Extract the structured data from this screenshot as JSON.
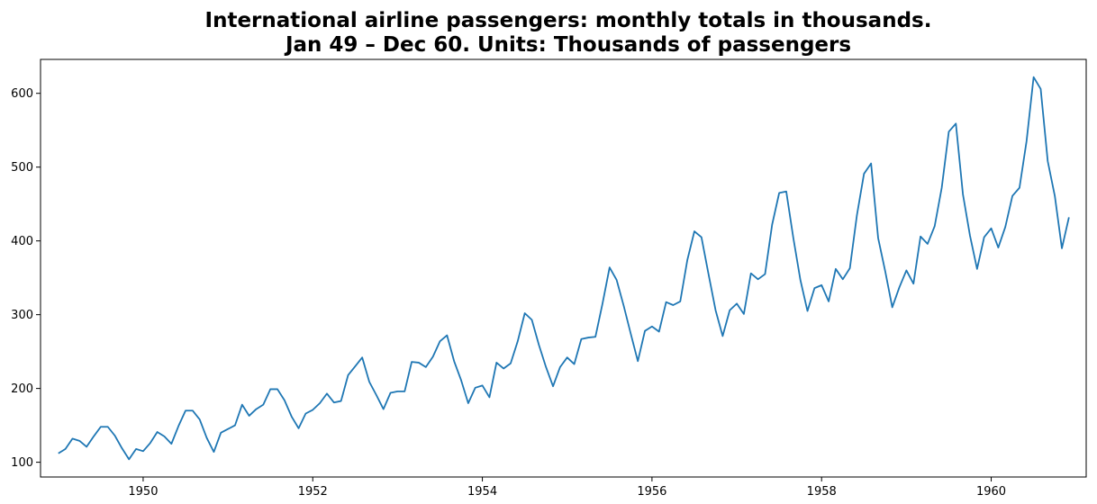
{
  "chart_data": {
    "type": "line",
    "title_lines": [
      "International airline passengers: monthly totals in thousands.",
      "Jan 49 – Dec 60. Units: Thousands of passengers"
    ],
    "xlabel": "",
    "ylabel": "",
    "grid": false,
    "legend": "none",
    "x_start": "1949-01",
    "x_frequency": "monthly",
    "xlim": [
      1948.79,
      1961.12
    ],
    "ylim": [
      80,
      646
    ],
    "x_ticks": [
      1950,
      1952,
      1954,
      1956,
      1958,
      1960
    ],
    "y_ticks": [
      100,
      200,
      300,
      400,
      500,
      600
    ],
    "series": [
      {
        "color": "#1f77b4",
        "values": [
          112,
          118,
          132,
          129,
          121,
          135,
          148,
          148,
          136,
          119,
          104,
          118,
          115,
          126,
          141,
          135,
          125,
          149,
          170,
          170,
          158,
          133,
          114,
          140,
          145,
          150,
          178,
          163,
          172,
          178,
          199,
          199,
          184,
          162,
          146,
          166,
          171,
          180,
          193,
          181,
          183,
          218,
          230,
          242,
          209,
          191,
          172,
          194,
          196,
          196,
          236,
          235,
          229,
          243,
          264,
          272,
          237,
          211,
          180,
          201,
          204,
          188,
          235,
          227,
          234,
          264,
          302,
          293,
          259,
          229,
          203,
          229,
          242,
          233,
          267,
          269,
          270,
          315,
          364,
          347,
          312,
          274,
          237,
          278,
          284,
          277,
          317,
          313,
          318,
          374,
          413,
          405,
          355,
          306,
          271,
          306,
          315,
          301,
          356,
          348,
          355,
          422,
          465,
          467,
          404,
          347,
          305,
          336,
          340,
          318,
          362,
          348,
          363,
          435,
          491,
          505,
          404,
          359,
          310,
          337,
          360,
          342,
          406,
          396,
          420,
          472,
          548,
          559,
          463,
          407,
          362,
          405,
          417,
          391,
          419,
          461,
          472,
          535,
          622,
          606,
          508,
          461,
          390,
          432
        ]
      }
    ]
  }
}
